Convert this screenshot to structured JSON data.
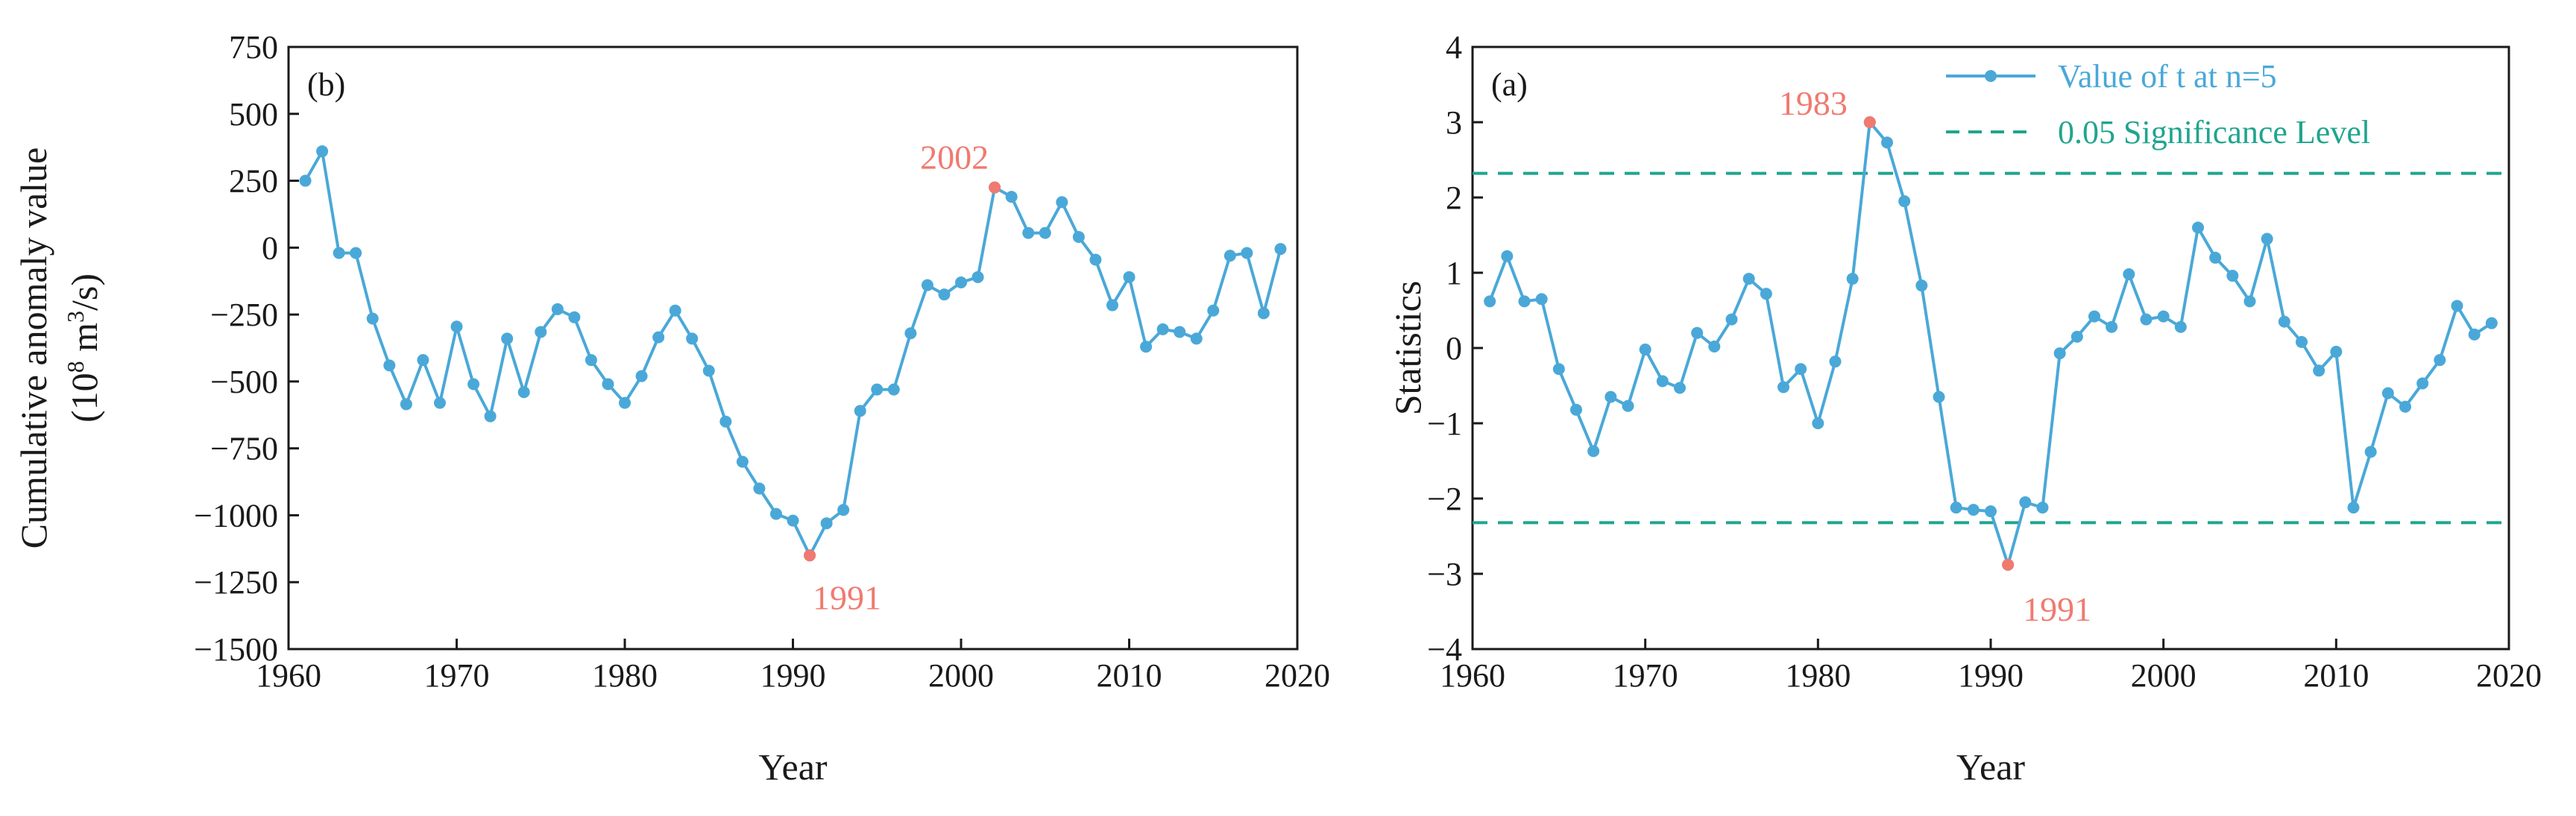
{
  "chart_data": [
    {
      "type": "line",
      "panel_label": "(b)",
      "title": "",
      "xlabel": "Year",
      "ylabel_line1": "Cumulative anomaly value",
      "ylabel_line2": "(10",
      "ylabel_sup": "8",
      "ylabel_line2_mid": " m",
      "ylabel_sup2": "3",
      "ylabel_line2_end": "/s)",
      "xlim": [
        1960,
        2020
      ],
      "ylim": [
        -1500,
        750
      ],
      "xticks": [
        1960,
        1970,
        1980,
        1990,
        2000,
        2010,
        2020
      ],
      "xtick_labels": [
        "1960",
        "1970",
        "1980",
        "1990",
        "2000",
        "2010",
        "2020"
      ],
      "yticks": [
        -1500,
        -1250,
        -1000,
        -750,
        -500,
        -250,
        0,
        250,
        500,
        750
      ],
      "ytick_labels": [
        "−1500",
        "−1250",
        "−1000",
        "−750",
        "−500",
        "−250",
        "0",
        "250",
        "500",
        "750"
      ],
      "series": [
        {
          "name": "Cumulative anomaly value",
          "color": "#4aa8d8",
          "x": [
            1961,
            1962,
            1963,
            1964,
            1965,
            1966,
            1967,
            1968,
            1969,
            1970,
            1971,
            1972,
            1973,
            1974,
            1975,
            1976,
            1977,
            1978,
            1979,
            1980,
            1981,
            1982,
            1983,
            1984,
            1985,
            1986,
            1987,
            1988,
            1989,
            1990,
            1991,
            1992,
            1993,
            1994,
            1995,
            1996,
            1997,
            1998,
            1999,
            2000,
            2001,
            2002,
            2003,
            2004,
            2005,
            2006,
            2007,
            2008,
            2009,
            2010,
            2011,
            2012,
            2013,
            2014,
            2015,
            2016,
            2017,
            2018,
            2019
          ],
          "values": [
            250,
            360,
            -20,
            -20,
            -265,
            -440,
            -585,
            -420,
            -580,
            -295,
            -510,
            -630,
            -340,
            -540,
            -315,
            -230,
            -260,
            -420,
            -510,
            -580,
            -480,
            -335,
            -235,
            -340,
            -460,
            -650,
            -800,
            -900,
            -995,
            -1020,
            -1150,
            -1030,
            -980,
            -610,
            -530,
            -530,
            -320,
            -140,
            -175,
            -130,
            -110,
            225,
            190,
            55,
            55,
            170,
            40,
            -45,
            -215,
            -110,
            -370,
            -305,
            -315,
            -340,
            -235,
            -30,
            -20,
            -245,
            -5
          ]
        }
      ],
      "highlights": [
        {
          "year": 2002,
          "value": 225,
          "label": "2002",
          "color": "#f07a70"
        },
        {
          "year": 1991,
          "value": -1150,
          "label": "1991",
          "color": "#f07a70"
        }
      ]
    },
    {
      "type": "line",
      "panel_label": "(a)",
      "title": "",
      "xlabel": "Year",
      "ylabel": "Statistics",
      "xlim": [
        1960,
        2020
      ],
      "ylim": [
        -4,
        4
      ],
      "xticks": [
        1960,
        1970,
        1980,
        1990,
        2000,
        2010,
        2020
      ],
      "xtick_labels": [
        "1960",
        "1970",
        "1980",
        "1990",
        "2000",
        "2010",
        "2020"
      ],
      "yticks": [
        -4,
        -3,
        -2,
        -1,
        0,
        1,
        2,
        3,
        4
      ],
      "ytick_labels": [
        "−4",
        "−3",
        "−2",
        "−1",
        "0",
        "1",
        "2",
        "3",
        "4"
      ],
      "series": [
        {
          "name": "Value of t at n=5",
          "color": "#4aa8d8",
          "x": [
            1961,
            1962,
            1963,
            1964,
            1965,
            1966,
            1967,
            1968,
            1969,
            1970,
            1971,
            1972,
            1973,
            1974,
            1975,
            1976,
            1977,
            1978,
            1979,
            1980,
            1981,
            1982,
            1983,
            1984,
            1985,
            1986,
            1987,
            1988,
            1989,
            1990,
            1991,
            1992,
            1993,
            1994,
            1995,
            1996,
            1997,
            1998,
            1999,
            2000,
            2001,
            2002,
            2003,
            2004,
            2005,
            2006,
            2007,
            2008,
            2009,
            2010,
            2011,
            2012,
            2013,
            2014,
            2015,
            2016,
            2017,
            2018,
            2019
          ],
          "values": [
            0.62,
            1.22,
            0.62,
            0.65,
            -0.28,
            -0.82,
            -1.37,
            -0.65,
            -0.77,
            -0.02,
            -0.44,
            -0.53,
            0.2,
            0.02,
            0.38,
            0.92,
            0.72,
            -0.52,
            -0.28,
            -1.0,
            -0.18,
            0.92,
            3.0,
            2.73,
            1.95,
            0.83,
            -0.65,
            -2.12,
            -2.15,
            -2.17,
            -2.88,
            -2.05,
            -2.12,
            -0.07,
            0.15,
            0.42,
            0.28,
            0.98,
            0.38,
            0.42,
            0.28,
            1.6,
            1.2,
            0.96,
            0.62,
            1.45,
            0.35,
            0.08,
            -0.3,
            -0.05,
            -2.12,
            -1.38,
            -0.6,
            -0.78,
            -0.47,
            -0.16,
            0.56,
            0.18,
            0.33
          ]
        },
        {
          "name": "0.05 Significance Level",
          "color": "#1fa58e",
          "style": "dashed",
          "values": [
            2.32,
            -2.32
          ]
        }
      ],
      "highlights": [
        {
          "year": 1983,
          "value": 3.0,
          "label": "1983",
          "color": "#f07a70"
        },
        {
          "year": 1991,
          "value": -2.88,
          "label": "1991",
          "color": "#f07a70"
        }
      ],
      "legend": {
        "placement": "top-right",
        "entries": [
          "Value of t at n=5",
          "0.05 Significance Level"
        ]
      }
    }
  ]
}
